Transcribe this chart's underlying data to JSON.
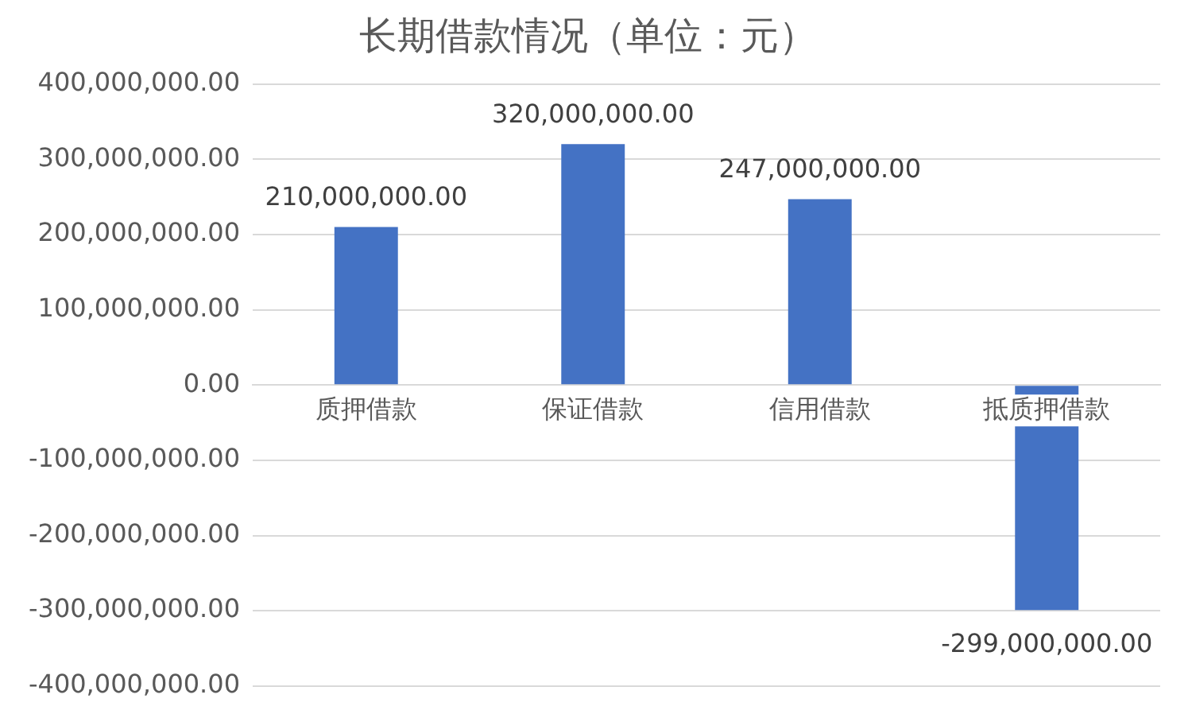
{
  "chart_data": {
    "type": "bar",
    "title": "长期借款情况（单位：元）",
    "categories": [
      "质押借款",
      "保证借款",
      "信用借款",
      "抵质押借款"
    ],
    "values": [
      210000000,
      320000000,
      247000000,
      -299000000
    ],
    "value_labels": [
      "210,000,000.00",
      "320,000,000.00",
      "247,000,000.00",
      "-299,000,000.00"
    ],
    "color": "#4472c4",
    "ylim": [
      -400000000,
      400000000
    ],
    "yticks": [
      {
        "value": -400000000,
        "label": "-400,000,000.00"
      },
      {
        "value": -300000000,
        "label": "-300,000,000.00"
      },
      {
        "value": -200000000,
        "label": "-200,000,000.00"
      },
      {
        "value": -100000000,
        "label": "-100,000,000.00"
      },
      {
        "value": 0,
        "label": "0.00"
      },
      {
        "value": 100000000,
        "label": "100,000,000.00"
      },
      {
        "value": 200000000,
        "label": "200,000,000.00"
      },
      {
        "value": 300000000,
        "label": "300,000,000.00"
      },
      {
        "value": 400000000,
        "label": "400,000,000.00"
      }
    ],
    "grid": "y",
    "legend": false
  }
}
